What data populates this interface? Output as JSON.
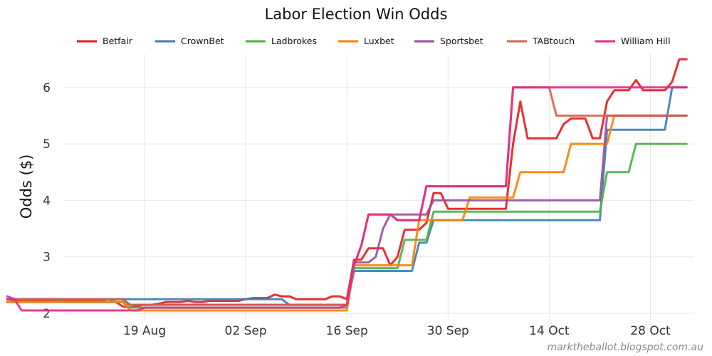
{
  "chart_data": {
    "type": "line",
    "title": "Labor Election Win Odds",
    "xlabel": "",
    "ylabel": "Odds ($)",
    "credit": "marktheballot.blogspot.com.au",
    "x_start": "10 Aug",
    "x_end": "30 Oct",
    "x_ticks": [
      {
        "day": 9,
        "label": "19 Aug"
      },
      {
        "day": 23,
        "label": "02 Sep"
      },
      {
        "day": 37,
        "label": "16 Sep"
      },
      {
        "day": 51,
        "label": "30 Sep"
      },
      {
        "day": 65,
        "label": "14 Oct"
      },
      {
        "day": 79,
        "label": "28 Oct"
      }
    ],
    "x_range": [
      -11,
      81
    ],
    "ylim": [
      1.9,
      6.65
    ],
    "y_ticks": [
      2,
      3,
      4,
      5,
      6
    ],
    "legend_position": "top",
    "series": [
      {
        "name": "Betfair",
        "color": "#e41a1c",
        "points": [
          [
            -10,
            2.25
          ],
          [
            -9,
            2.23
          ],
          [
            -8,
            2.23
          ],
          [
            -7,
            2.23
          ],
          [
            -6,
            2.23
          ],
          [
            -5,
            2.23
          ],
          [
            -4,
            2.22
          ],
          [
            -3,
            2.22
          ],
          [
            -2,
            2.22
          ],
          [
            -1,
            2.22
          ],
          [
            0,
            2.22
          ],
          [
            1,
            2.22
          ],
          [
            2,
            2.22
          ],
          [
            3,
            2.22
          ],
          [
            4,
            2.2
          ],
          [
            5,
            2.2
          ],
          [
            6,
            2.12
          ],
          [
            7,
            2.1
          ],
          [
            8,
            2.13
          ],
          [
            9,
            2.15
          ],
          [
            10,
            2.15
          ],
          [
            11,
            2.17
          ],
          [
            12,
            2.2
          ],
          [
            13,
            2.2
          ],
          [
            14,
            2.2
          ],
          [
            15,
            2.22
          ],
          [
            16,
            2.2
          ],
          [
            17,
            2.2
          ],
          [
            18,
            2.22
          ],
          [
            19,
            2.22
          ],
          [
            20,
            2.22
          ],
          [
            21,
            2.22
          ],
          [
            22,
            2.22
          ],
          [
            23,
            2.25
          ],
          [
            24,
            2.27
          ],
          [
            25,
            2.27
          ],
          [
            26,
            2.27
          ],
          [
            27,
            2.33
          ],
          [
            28,
            2.3
          ],
          [
            29,
            2.3
          ],
          [
            30,
            2.25
          ],
          [
            31,
            2.25
          ],
          [
            32,
            2.25
          ],
          [
            33,
            2.25
          ],
          [
            34,
            2.25
          ],
          [
            35,
            2.3
          ],
          [
            36,
            2.3
          ],
          [
            37,
            2.25
          ],
          [
            38,
            2.95
          ],
          [
            39,
            2.95
          ],
          [
            40,
            3.15
          ],
          [
            41,
            3.15
          ],
          [
            42,
            3.15
          ],
          [
            43,
            2.85
          ],
          [
            44,
            3.0
          ],
          [
            45,
            3.48
          ],
          [
            46,
            3.48
          ],
          [
            47,
            3.48
          ],
          [
            48,
            3.6
          ],
          [
            49,
            4.13
          ],
          [
            50,
            4.13
          ],
          [
            51,
            3.85
          ],
          [
            52,
            3.85
          ],
          [
            53,
            3.85
          ],
          [
            54,
            3.85
          ],
          [
            55,
            3.85
          ],
          [
            56,
            3.85
          ],
          [
            57,
            3.85
          ],
          [
            58,
            3.85
          ],
          [
            59,
            3.85
          ],
          [
            60,
            5.0
          ],
          [
            61,
            5.75
          ],
          [
            62,
            5.1
          ],
          [
            63,
            5.1
          ],
          [
            64,
            5.1
          ],
          [
            65,
            5.1
          ],
          [
            66,
            5.1
          ],
          [
            67,
            5.35
          ],
          [
            68,
            5.45
          ],
          [
            69,
            5.45
          ],
          [
            70,
            5.45
          ],
          [
            71,
            5.1
          ],
          [
            72,
            5.1
          ],
          [
            73,
            5.75
          ],
          [
            74,
            5.95
          ],
          [
            75,
            5.95
          ],
          [
            76,
            5.95
          ],
          [
            77,
            6.13
          ],
          [
            78,
            5.95
          ],
          [
            79,
            5.95
          ],
          [
            80,
            5.95
          ],
          [
            81,
            5.95
          ],
          [
            82,
            6.1
          ],
          [
            83,
            6.5
          ],
          [
            84,
            6.5
          ]
        ]
      },
      {
        "name": "CrownBet",
        "color": "#377eb8",
        "points": [
          [
            -10,
            2.25
          ],
          [
            -9,
            2.25
          ],
          [
            -3,
            2.25
          ],
          [
            -2,
            2.2
          ],
          [
            4,
            2.2
          ],
          [
            5,
            2.25
          ],
          [
            22,
            2.25
          ],
          [
            27,
            2.25
          ],
          [
            28,
            2.25
          ],
          [
            29,
            2.15
          ],
          [
            36,
            2.15
          ],
          [
            37,
            2.15
          ],
          [
            38,
            2.75
          ],
          [
            44,
            2.75
          ],
          [
            45,
            2.75
          ],
          [
            46,
            2.75
          ],
          [
            47,
            3.25
          ],
          [
            48,
            3.25
          ],
          [
            49,
            3.65
          ],
          [
            50,
            3.65
          ],
          [
            51,
            3.65
          ],
          [
            72,
            3.65
          ],
          [
            73,
            5.25
          ],
          [
            74,
            5.25
          ],
          [
            81,
            5.25
          ],
          [
            82,
            6.0
          ],
          [
            84,
            6.0
          ]
        ]
      },
      {
        "name": "Ladbrokes",
        "color": "#4daf4a",
        "points": [
          [
            -10,
            2.2
          ],
          [
            -4,
            2.2
          ],
          [
            -3,
            2.2
          ],
          [
            -2,
            2.2
          ],
          [
            6,
            2.2
          ],
          [
            7,
            2.1
          ],
          [
            36,
            2.1
          ],
          [
            37,
            2.1
          ],
          [
            38,
            2.8
          ],
          [
            44,
            2.8
          ],
          [
            45,
            3.3
          ],
          [
            46,
            3.3
          ],
          [
            47,
            3.3
          ],
          [
            48,
            3.3
          ],
          [
            49,
            3.8
          ],
          [
            50,
            3.8
          ],
          [
            71,
            3.8
          ],
          [
            72,
            3.8
          ],
          [
            73,
            4.5
          ],
          [
            74,
            4.5
          ],
          [
            76,
            4.5
          ],
          [
            77,
            5.0
          ],
          [
            84,
            5.0
          ]
        ]
      },
      {
        "name": "Luxbet",
        "color": "#ff7f00",
        "points": [
          [
            -10,
            2.2
          ],
          [
            -3,
            2.2
          ],
          [
            -2,
            2.2
          ],
          [
            6,
            2.2
          ],
          [
            7,
            2.05
          ],
          [
            36,
            2.05
          ],
          [
            37,
            2.05
          ],
          [
            38,
            2.85
          ],
          [
            45,
            2.85
          ],
          [
            46,
            2.85
          ],
          [
            47,
            3.65
          ],
          [
            53,
            3.65
          ],
          [
            54,
            4.05
          ],
          [
            59,
            4.05
          ],
          [
            60,
            4.05
          ],
          [
            61,
            4.5
          ],
          [
            66,
            4.5
          ],
          [
            67,
            4.5
          ],
          [
            68,
            5.0
          ],
          [
            72,
            5.0
          ],
          [
            73,
            5.0
          ],
          [
            74,
            5.5
          ],
          [
            84,
            5.5
          ]
        ]
      },
      {
        "name": "Sportsbet",
        "color": "#984ea3",
        "points": [
          [
            -10,
            2.3
          ],
          [
            -9,
            2.25
          ],
          [
            -3,
            2.25
          ],
          [
            -2,
            2.25
          ],
          [
            6,
            2.25
          ],
          [
            7,
            2.15
          ],
          [
            8,
            2.15
          ],
          [
            36,
            2.15
          ],
          [
            37,
            2.15
          ],
          [
            38,
            2.9
          ],
          [
            39,
            2.9
          ],
          [
            40,
            2.9
          ],
          [
            41,
            3.0
          ],
          [
            42,
            3.5
          ],
          [
            43,
            3.75
          ],
          [
            44,
            3.75
          ],
          [
            45,
            3.75
          ],
          [
            46,
            3.75
          ],
          [
            47,
            3.75
          ],
          [
            48,
            3.75
          ],
          [
            49,
            4.0
          ],
          [
            50,
            4.0
          ],
          [
            70,
            4.0
          ],
          [
            71,
            4.0
          ],
          [
            72,
            4.0
          ],
          [
            73,
            5.5
          ],
          [
            84,
            5.5
          ]
        ]
      },
      {
        "name": "TABtouch",
        "color": "#d6604d",
        "points": [
          [
            -10,
            2.25
          ],
          [
            -3,
            2.25
          ],
          [
            -2,
            2.25
          ],
          [
            6,
            2.25
          ],
          [
            7,
            2.15
          ],
          [
            36,
            2.15
          ],
          [
            37,
            2.15
          ],
          [
            38,
            2.85
          ],
          [
            39,
            3.2
          ],
          [
            40,
            3.75
          ],
          [
            41,
            3.75
          ],
          [
            42,
            3.75
          ],
          [
            43,
            3.75
          ],
          [
            44,
            3.65
          ],
          [
            45,
            3.65
          ],
          [
            46,
            3.65
          ],
          [
            47,
            3.65
          ],
          [
            48,
            4.25
          ],
          [
            49,
            4.25
          ],
          [
            50,
            4.25
          ],
          [
            59,
            4.25
          ],
          [
            60,
            6.0
          ],
          [
            61,
            6.0
          ],
          [
            65,
            6.0
          ],
          [
            66,
            5.5
          ],
          [
            67,
            5.5
          ],
          [
            84,
            5.5
          ]
        ]
      },
      {
        "name": "William Hill",
        "color": "#e7298a",
        "points": [
          [
            -10,
            2.25
          ],
          [
            -9,
            2.25
          ],
          [
            -8,
            2.05
          ],
          [
            -3,
            2.05
          ],
          [
            -2,
            2.05
          ],
          [
            6,
            2.05
          ],
          [
            7,
            2.05
          ],
          [
            8,
            2.05
          ],
          [
            9,
            2.1
          ],
          [
            36,
            2.1
          ],
          [
            37,
            2.15
          ],
          [
            38,
            2.85
          ],
          [
            39,
            3.2
          ],
          [
            40,
            3.75
          ],
          [
            41,
            3.75
          ],
          [
            42,
            3.75
          ],
          [
            43,
            3.75
          ],
          [
            44,
            3.65
          ],
          [
            45,
            3.65
          ],
          [
            46,
            3.65
          ],
          [
            47,
            3.65
          ],
          [
            48,
            4.25
          ],
          [
            49,
            4.25
          ],
          [
            50,
            4.25
          ],
          [
            59,
            4.25
          ],
          [
            60,
            6.0
          ],
          [
            84,
            6.0
          ]
        ]
      }
    ]
  }
}
